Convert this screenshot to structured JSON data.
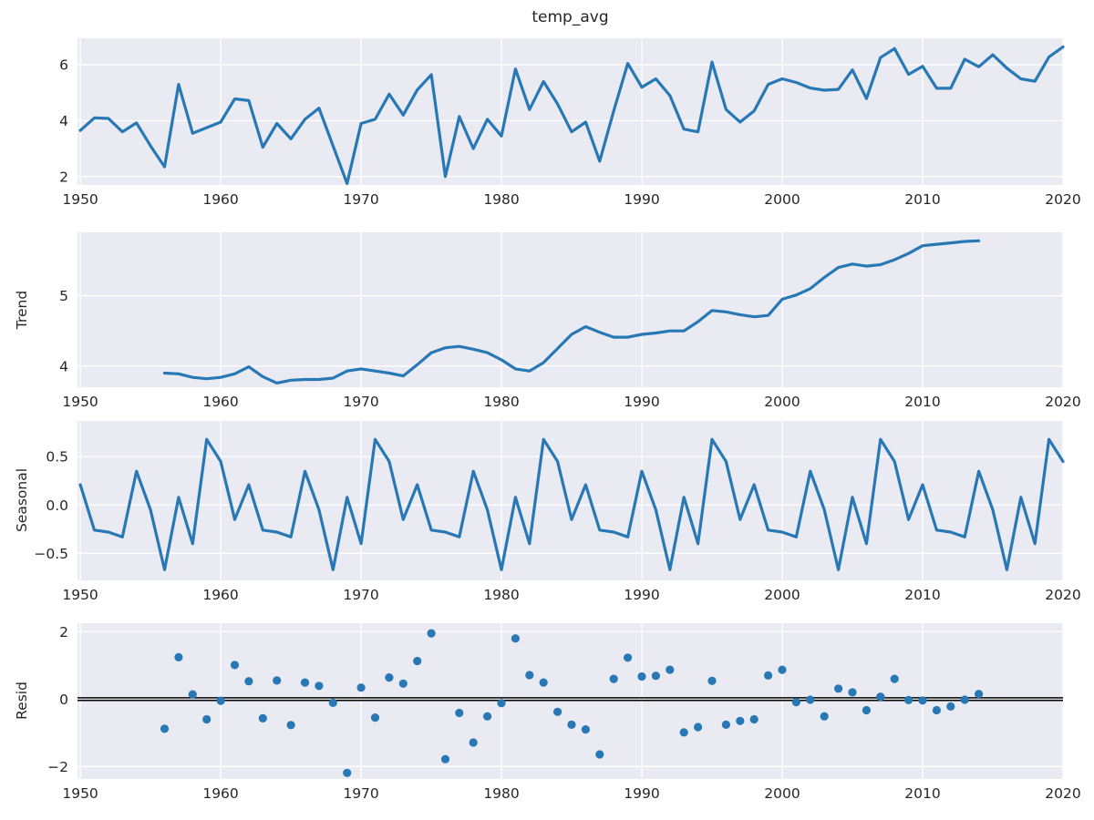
{
  "chart_data": [
    {
      "type": "line",
      "title": "temp_avg",
      "ylabel": "",
      "x_start": 1950,
      "x_step": 1,
      "values": [
        3.65,
        4.1,
        4.08,
        3.6,
        3.92,
        3.1,
        2.35,
        5.3,
        3.55,
        3.75,
        3.95,
        4.78,
        4.72,
        3.05,
        3.9,
        3.35,
        4.05,
        4.45,
        3.1,
        1.75,
        3.9,
        4.05,
        4.95,
        4.2,
        5.1,
        5.65,
        2.0,
        4.15,
        3.0,
        4.05,
        3.45,
        5.85,
        4.4,
        5.4,
        4.6,
        3.6,
        3.95,
        2.55,
        4.35,
        6.05,
        5.2,
        5.5,
        4.9,
        3.7,
        3.6,
        6.1,
        4.4,
        3.95,
        4.35,
        5.3,
        5.5,
        5.37,
        5.17,
        5.09,
        5.12,
        5.82,
        4.79,
        6.26,
        6.58,
        5.66,
        5.95,
        5.16,
        5.16,
        6.2,
        5.93,
        6.36,
        5.88,
        5.5,
        5.41,
        6.28,
        6.64
      ],
      "ylim": [
        1.7,
        6.95
      ],
      "yticks": [
        2,
        4,
        6
      ],
      "ytick_labels": [
        "2",
        "4",
        "6"
      ]
    },
    {
      "type": "line",
      "title": "",
      "ylabel": "Trend",
      "x_start": 1956,
      "x_step": 1,
      "values": [
        3.9,
        3.89,
        3.84,
        3.82,
        3.84,
        3.89,
        3.99,
        3.85,
        3.76,
        3.8,
        3.81,
        3.81,
        3.83,
        3.93,
        3.96,
        3.93,
        3.9,
        3.86,
        4.02,
        4.19,
        4.26,
        4.28,
        4.24,
        4.19,
        4.09,
        3.96,
        3.93,
        4.05,
        4.25,
        4.45,
        4.56,
        4.48,
        4.41,
        4.41,
        4.45,
        4.47,
        4.5,
        4.5,
        4.63,
        4.79,
        4.77,
        4.73,
        4.7,
        4.72,
        4.95,
        5.01,
        5.1,
        5.26,
        5.4,
        5.45,
        5.42,
        5.44,
        5.51,
        5.6,
        5.71,
        5.73,
        5.75,
        5.77,
        5.78
      ],
      "ylim": [
        3.7,
        5.9
      ],
      "yticks": [
        4,
        5
      ],
      "ytick_labels": [
        "4",
        "5"
      ]
    },
    {
      "type": "line",
      "title": "",
      "ylabel": "Seasonal",
      "x_start": 1950,
      "x_step": 1,
      "values": [
        0.21,
        -0.26,
        -0.28,
        -0.33,
        0.35,
        -0.05,
        -0.67,
        0.08,
        -0.4,
        0.68,
        0.45,
        -0.15,
        0.21,
        -0.26,
        -0.28,
        -0.33,
        0.35,
        -0.05,
        -0.67,
        0.08,
        -0.4,
        0.68,
        0.45,
        -0.15,
        0.21,
        -0.26,
        -0.28,
        -0.33,
        0.35,
        -0.05,
        -0.67,
        0.08,
        -0.4,
        0.68,
        0.45,
        -0.15,
        0.21,
        -0.26,
        -0.28,
        -0.33,
        0.35,
        -0.05,
        -0.67,
        0.08,
        -0.4,
        0.68,
        0.45,
        -0.15,
        0.21,
        -0.26,
        -0.28,
        -0.33,
        0.35,
        -0.05,
        -0.67,
        0.08,
        -0.4,
        0.68,
        0.45,
        -0.15,
        0.21,
        -0.26,
        -0.28,
        -0.33,
        0.35,
        -0.05,
        -0.67,
        0.08,
        -0.4,
        0.68,
        0.45
      ],
      "ylim": [
        -0.78,
        0.87
      ],
      "yticks": [
        0.5,
        0.0,
        -0.5
      ],
      "ytick_labels": [
        "0.5",
        "0.0",
        "−0.5"
      ]
    },
    {
      "type": "scatter",
      "title": "",
      "ylabel": "Resid",
      "x_start": 1956,
      "x_step": 1,
      "zero_line": 0,
      "values": [
        -0.88,
        1.24,
        0.14,
        -0.6,
        -0.05,
        1.01,
        0.53,
        -0.57,
        0.55,
        -0.77,
        0.49,
        0.39,
        -0.11,
        -2.19,
        0.34,
        -0.55,
        0.64,
        0.46,
        1.13,
        1.95,
        -1.78,
        -0.41,
        -1.29,
        -0.51,
        -0.12,
        1.8,
        0.71,
        0.49,
        -0.38,
        -0.76,
        -0.9,
        -1.64,
        0.6,
        1.23,
        0.67,
        0.69,
        0.87,
        -0.99,
        -0.83,
        0.54,
        -0.76,
        -0.65,
        -0.6,
        0.7,
        0.87,
        -0.09,
        -0.02,
        -0.51,
        0.31,
        0.2,
        -0.33,
        0.07,
        0.6,
        -0.03,
        -0.04,
        -0.33,
        -0.22,
        -0.02,
        0.15
      ],
      "ylim": [
        -2.37,
        2.25
      ],
      "yticks": [
        2,
        0,
        -2
      ],
      "ytick_labels": [
        "2",
        "0",
        "−2"
      ]
    }
  ],
  "x_axis": {
    "xlim": [
      1949.8,
      2020.0
    ],
    "xticks": [
      1950,
      1960,
      1970,
      1980,
      1990,
      2000,
      2010,
      2020
    ],
    "xtick_labels": [
      "1950",
      "1960",
      "1970",
      "1980",
      "1990",
      "2000",
      "2010",
      "2020"
    ]
  },
  "style": {
    "line_color": "#2878b5",
    "marker_color": "#2878b5",
    "panel_bg": "#eaeaf2",
    "grid_color": "#ffffff",
    "text_color": "#262626",
    "zero_line_color": "#000000",
    "figure_bg": "#ffffff"
  }
}
